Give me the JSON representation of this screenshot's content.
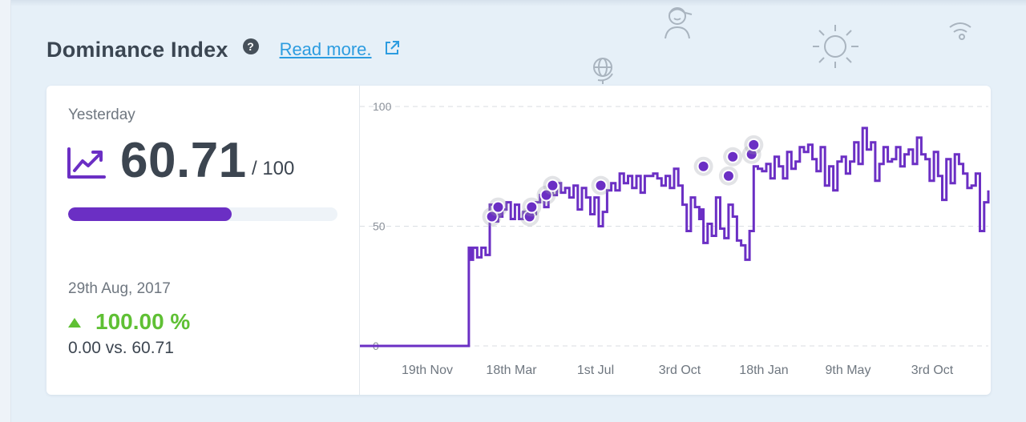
{
  "header": {
    "title": "Dominance Index",
    "help_icon": "question-circle-icon",
    "read_more_label": "Read more.",
    "external_link_icon": "external-link-icon"
  },
  "summary": {
    "period_label": "Yesterday",
    "trend_icon": "trend-up-icon",
    "value": "60.71",
    "max_label": "/ 100",
    "progress": 0.6071,
    "comparison_date": "29th Aug, 2017",
    "change_icon": "triangle-up-icon",
    "change": "100.00 %",
    "comparison": "0.00 vs. 60.71"
  },
  "colors": {
    "accent": "#6b2fc4",
    "positive": "#5fc034",
    "link": "#2c9ce0",
    "title": "#3b4652",
    "background": "#e6f0f8"
  },
  "decorations": [
    "person-icon",
    "globe-icon",
    "sun-icon",
    "wifi-icon"
  ],
  "chart_data": {
    "type": "line",
    "title": "",
    "xlabel": "",
    "ylabel": "",
    "ylim": [
      0,
      100
    ],
    "yticks": [
      0,
      50,
      100
    ],
    "grid": true,
    "x_tick_labels": [
      "19th Nov",
      "18th Mar",
      "1st Jul",
      "3rd Oct",
      "18th Jan",
      "9th May",
      "3rd Oct"
    ],
    "series": [
      {
        "color": "#6b2fc4",
        "x": [
          0,
          50,
          52,
          53,
          54,
          56,
          58,
          60,
          62,
          64,
          66,
          67,
          68,
          70,
          72,
          74,
          76,
          78,
          80,
          82,
          84,
          86,
          88,
          90,
          92,
          94,
          96,
          98,
          100,
          102,
          104,
          106,
          108,
          110,
          112,
          114,
          116,
          118,
          120,
          122,
          124,
          126,
          128,
          130,
          132,
          134,
          136,
          138,
          140,
          142,
          144,
          146,
          148,
          150,
          152,
          154,
          156,
          158,
          160,
          162,
          163,
          164,
          166,
          168,
          170,
          172,
          174,
          176,
          178,
          180,
          182,
          184,
          186,
          188,
          190,
          192,
          194,
          196,
          198,
          200,
          202,
          204,
          206,
          208,
          210,
          212,
          214,
          216,
          218,
          220,
          222,
          224,
          226,
          228,
          230,
          232,
          234,
          236,
          238,
          240,
          242,
          244,
          246,
          248,
          250,
          252,
          254,
          256,
          258,
          260,
          262,
          264,
          266,
          268,
          270,
          272,
          274,
          276,
          278,
          280,
          282,
          284,
          286,
          288,
          290,
          292,
          294,
          296,
          298,
          300
        ],
        "values": [
          0,
          0,
          41,
          36,
          41,
          37,
          41,
          38,
          59,
          52,
          58,
          54,
          57,
          60,
          53,
          59,
          53,
          56,
          58,
          55,
          60,
          63,
          58,
          67,
          63,
          68,
          64,
          66,
          62,
          67,
          57,
          66,
          62,
          55,
          62,
          50,
          56,
          65,
          68,
          65,
          72,
          68,
          71,
          66,
          71,
          64,
          71,
          71,
          72,
          70,
          67,
          71,
          66,
          74,
          67,
          59,
          48,
          62,
          58,
          53,
          57,
          43,
          51,
          46,
          62,
          49,
          45,
          59,
          54,
          44,
          42,
          36,
          48,
          75,
          74,
          73,
          76,
          70,
          79,
          75,
          70,
          81,
          74,
          77,
          83,
          81,
          84,
          78,
          73,
          83,
          67,
          75,
          65,
          77,
          79,
          72,
          77,
          85,
          76,
          91,
          82,
          85,
          69,
          76,
          83,
          77,
          78,
          83,
          75,
          80,
          82,
          76,
          87,
          80,
          78,
          69,
          81,
          71,
          61,
          78,
          68,
          80,
          76,
          72,
          66,
          67,
          72,
          48,
          60,
          65
        ]
      }
    ],
    "markers": [
      {
        "x": 63,
        "value": 54
      },
      {
        "x": 66,
        "value": 58
      },
      {
        "x": 81,
        "value": 54
      },
      {
        "x": 82,
        "value": 58
      },
      {
        "x": 89,
        "value": 63
      },
      {
        "x": 92,
        "value": 67
      },
      {
        "x": 115,
        "value": 67
      },
      {
        "x": 164,
        "value": 75
      },
      {
        "x": 176,
        "value": 71
      },
      {
        "x": 178,
        "value": 79
      },
      {
        "x": 187,
        "value": 80
      },
      {
        "x": 188,
        "value": 84
      }
    ]
  }
}
